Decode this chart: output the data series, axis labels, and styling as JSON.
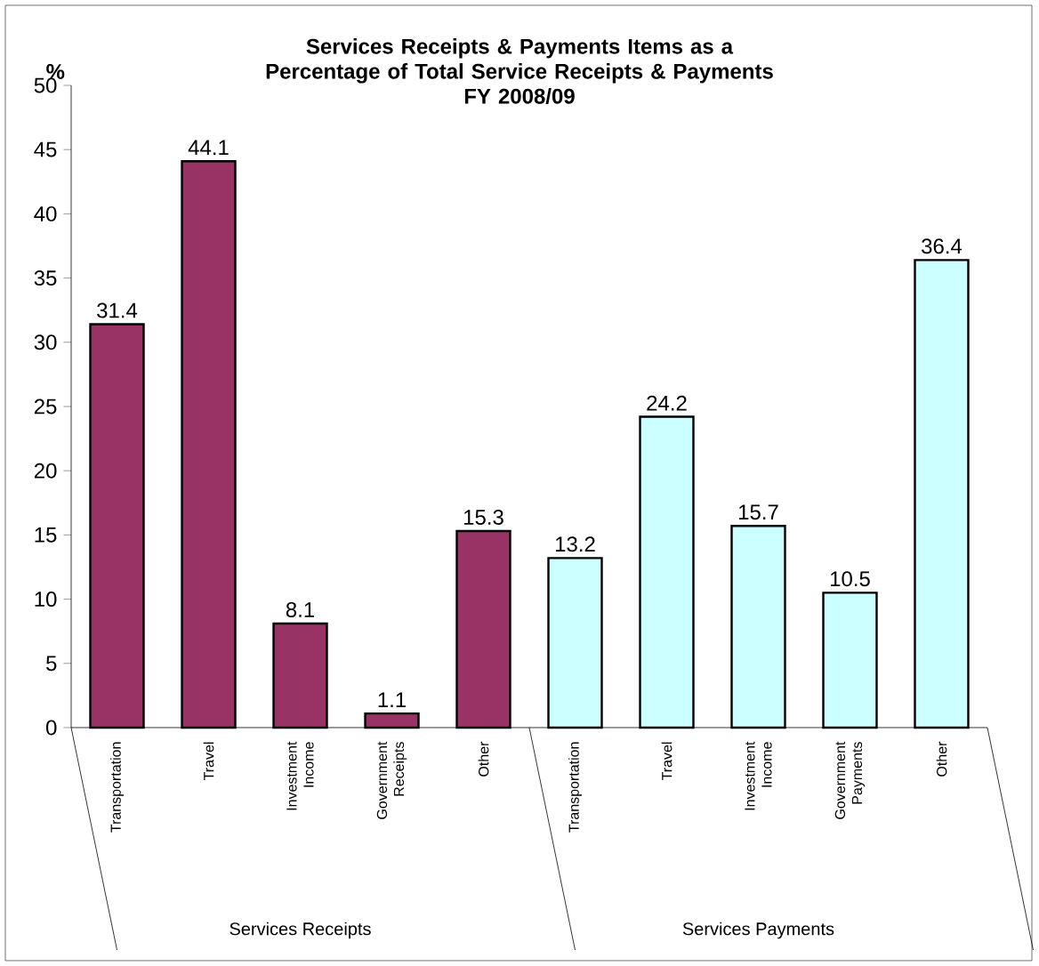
{
  "chart_data": {
    "type": "bar",
    "title": "Services Receipts & Payments Items as a Percentage of Total Service Receipts & Payments",
    "subtitle": "FY 2008/09",
    "ylabel": "%",
    "categories": [
      "Transportation",
      "Travel",
      "Investment Income",
      "Government Receipts",
      "Other",
      "Transportation",
      "Travel",
      "Investment Income",
      "Government Payments",
      "Other"
    ],
    "values": [
      31.4,
      44.1,
      8.1,
      1.1,
      15.3,
      13.2,
      24.2,
      15.7,
      10.5,
      36.4
    ],
    "colors": [
      "#993366",
      "#993366",
      "#993366",
      "#993366",
      "#993366",
      "#ccffff",
      "#ccffff",
      "#ccffff",
      "#ccffff",
      "#ccffff"
    ],
    "ylim": [
      0,
      50
    ],
    "yticks": [
      0,
      5,
      10,
      15,
      20,
      25,
      30,
      35,
      40,
      45,
      50
    ],
    "data_labels": true,
    "annotations": [
      "Services Receipts",
      "Services Payments"
    ]
  }
}
